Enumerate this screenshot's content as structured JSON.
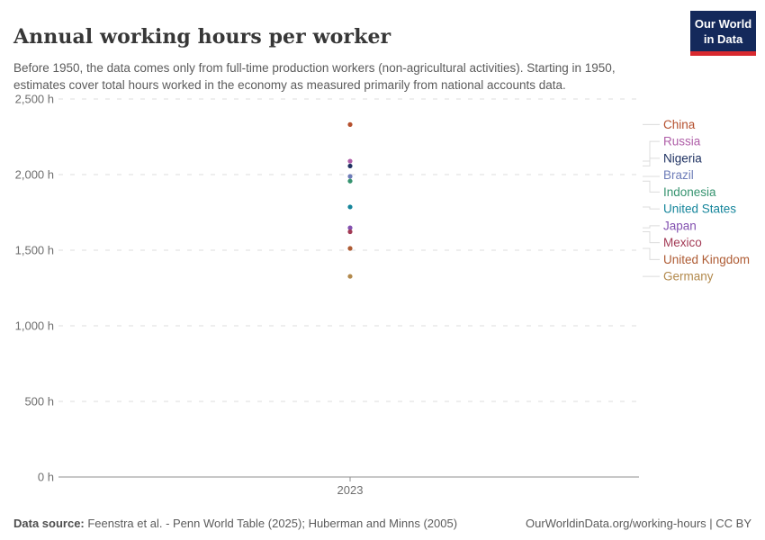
{
  "header": {
    "title": "Annual working hours per worker",
    "subtitle": "Before 1950, the data comes only from full-time production workers (non-agricultural activities). Starting in 1950, estimates cover total hours worked in the economy as measured primarily from national accounts data."
  },
  "logo": {
    "line1": "Our World",
    "line2": "in Data"
  },
  "chart_data": {
    "type": "scatter",
    "title": "Annual working hours per worker",
    "x": [
      2023
    ],
    "x_tick_label": "2023",
    "ylim": [
      0,
      2500
    ],
    "grid": "horizontal-dashed",
    "legend_position": "right",
    "yticks": [
      {
        "value": 0,
        "label": "0 h"
      },
      {
        "value": 500,
        "label": "500 h"
      },
      {
        "value": 1000,
        "label": "1,000 h"
      },
      {
        "value": 1500,
        "label": "1,500 h"
      },
      {
        "value": 2000,
        "label": "2,000 h"
      },
      {
        "value": 2500,
        "label": "2,500 h"
      }
    ],
    "series": [
      {
        "name": "China",
        "value": 2331,
        "color": "#b5502e"
      },
      {
        "name": "Russia",
        "value": 2089,
        "color": "#af5fa8"
      },
      {
        "name": "Nigeria",
        "value": 2057,
        "color": "#1f3262"
      },
      {
        "name": "Brazil",
        "value": 1988,
        "color": "#6d7cb8"
      },
      {
        "name": "Indonesia",
        "value": 1957,
        "color": "#35936f"
      },
      {
        "name": "United States",
        "value": 1786,
        "color": "#15859b"
      },
      {
        "name": "Japan",
        "value": 1648,
        "color": "#8351b0"
      },
      {
        "name": "Mexico",
        "value": 1622,
        "color": "#a23a55"
      },
      {
        "name": "United Kingdom",
        "value": 1512,
        "color": "#ae5b33"
      },
      {
        "name": "Germany",
        "value": 1327,
        "color": "#b2894c"
      }
    ]
  },
  "footer": {
    "datasource_label": "Data source:",
    "datasource_text": " Feenstra et al. - Penn World Table (2025); Huberman and Minns (2005)",
    "link": "OurWorldinData.org/working-hours | CC BY"
  }
}
